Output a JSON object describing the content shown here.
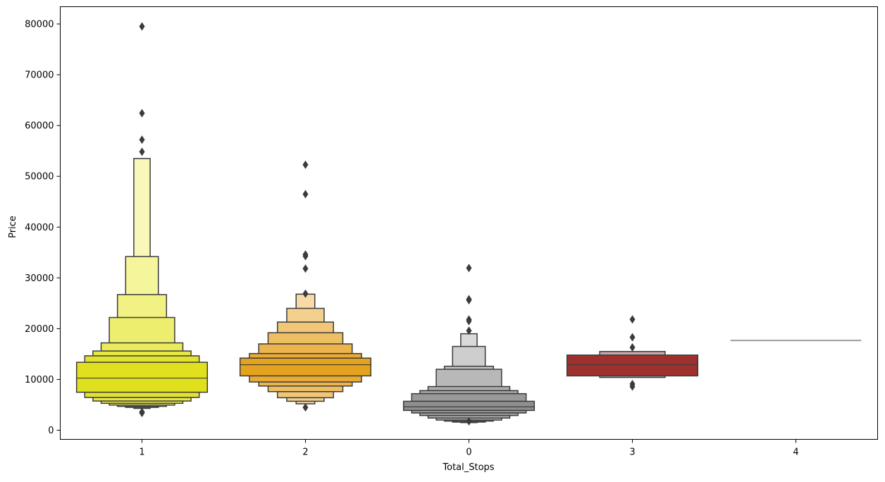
{
  "chart_data": {
    "type": "boxen",
    "xlabel": "Total_Stops",
    "ylabel": "Price",
    "categories": [
      "1",
      "2",
      "0",
      "3",
      "4"
    ],
    "yticks": [
      0,
      10000,
      20000,
      30000,
      40000,
      50000,
      60000,
      70000,
      80000
    ],
    "yticklabels": [
      "0",
      "10000",
      "20000",
      "30000",
      "40000",
      "50000",
      "60000",
      "70000",
      "80000"
    ],
    "ylim": [
      -1800,
      83400
    ],
    "grid": false,
    "legend": "none",
    "colors": {
      "1": "#e0e01e",
      "2": "#e5a21e",
      "0": "#8f8f8f",
      "3": "#9e302d",
      "4": "#9a9a9a"
    },
    "series": [
      {
        "category": "1",
        "median": 10262,
        "levels": [
          {
            "lo": 7480,
            "hi": 13380,
            "fill": "#e0e01e"
          },
          {
            "lo": 6450,
            "hi": 14650,
            "fill": "#e3e32e"
          },
          {
            "lo": 5750,
            "hi": 15600,
            "fill": "#e6e645"
          },
          {
            "lo": 5300,
            "hi": 17200,
            "fill": "#eaea5a"
          },
          {
            "lo": 4950,
            "hi": 22200,
            "fill": "#eeee6e"
          },
          {
            "lo": 4700,
            "hi": 26700,
            "fill": "#f2f284"
          },
          {
            "lo": 4500,
            "hi": 34200,
            "fill": "#f5f59c"
          },
          {
            "lo": 4300,
            "hi": 53500,
            "fill": "#f8f8b8"
          }
        ],
        "outliers": [
          79512,
          62427,
          57209,
          54826,
          3600,
          3400
        ]
      },
      {
        "category": "2",
        "median": 12900,
        "levels": [
          {
            "lo": 10700,
            "hi": 14200,
            "fill": "#e5a21e"
          },
          {
            "lo": 9500,
            "hi": 15100,
            "fill": "#e8ab35"
          },
          {
            "lo": 8700,
            "hi": 17000,
            "fill": "#ebb44c"
          },
          {
            "lo": 7600,
            "hi": 19200,
            "fill": "#eebe62"
          },
          {
            "lo": 6400,
            "hi": 21300,
            "fill": "#f1c777"
          },
          {
            "lo": 5700,
            "hi": 24000,
            "fill": "#f4d08e"
          },
          {
            "lo": 5200,
            "hi": 26800,
            "fill": "#f7daa6"
          }
        ],
        "outliers": [
          52285,
          46490,
          34608,
          34273,
          31825,
          26890,
          4500
        ]
      },
      {
        "category": "0",
        "median": 4600,
        "levels": [
          {
            "lo": 3900,
            "hi": 5700,
            "fill": "#8f8f8f"
          },
          {
            "lo": 3400,
            "hi": 7200,
            "fill": "#999999"
          },
          {
            "lo": 2900,
            "hi": 7800,
            "fill": "#a3a3a3"
          },
          {
            "lo": 2400,
            "hi": 8600,
            "fill": "#adadad"
          },
          {
            "lo": 2000,
            "hi": 12000,
            "fill": "#b8b8b8"
          },
          {
            "lo": 1800,
            "hi": 12600,
            "fill": "#c3c3c3"
          },
          {
            "lo": 1600,
            "hi": 16500,
            "fill": "#cecece"
          },
          {
            "lo": 1500,
            "hi": 19000,
            "fill": "#dadada"
          }
        ],
        "outliers": [
          31945,
          25800,
          25600,
          21800,
          21500,
          19600,
          1759
        ]
      },
      {
        "category": "3",
        "median": 12900,
        "levels": [
          {
            "lo": 10700,
            "hi": 14800,
            "fill": "#9e302d"
          },
          {
            "lo": 10400,
            "hi": 15500,
            "fill": "#c9a7a5"
          }
        ],
        "outliers": [
          21829,
          18308,
          16300,
          9100,
          8607
        ]
      },
      {
        "category": "4",
        "median": 17686,
        "levels": [],
        "outliers": []
      }
    ]
  }
}
